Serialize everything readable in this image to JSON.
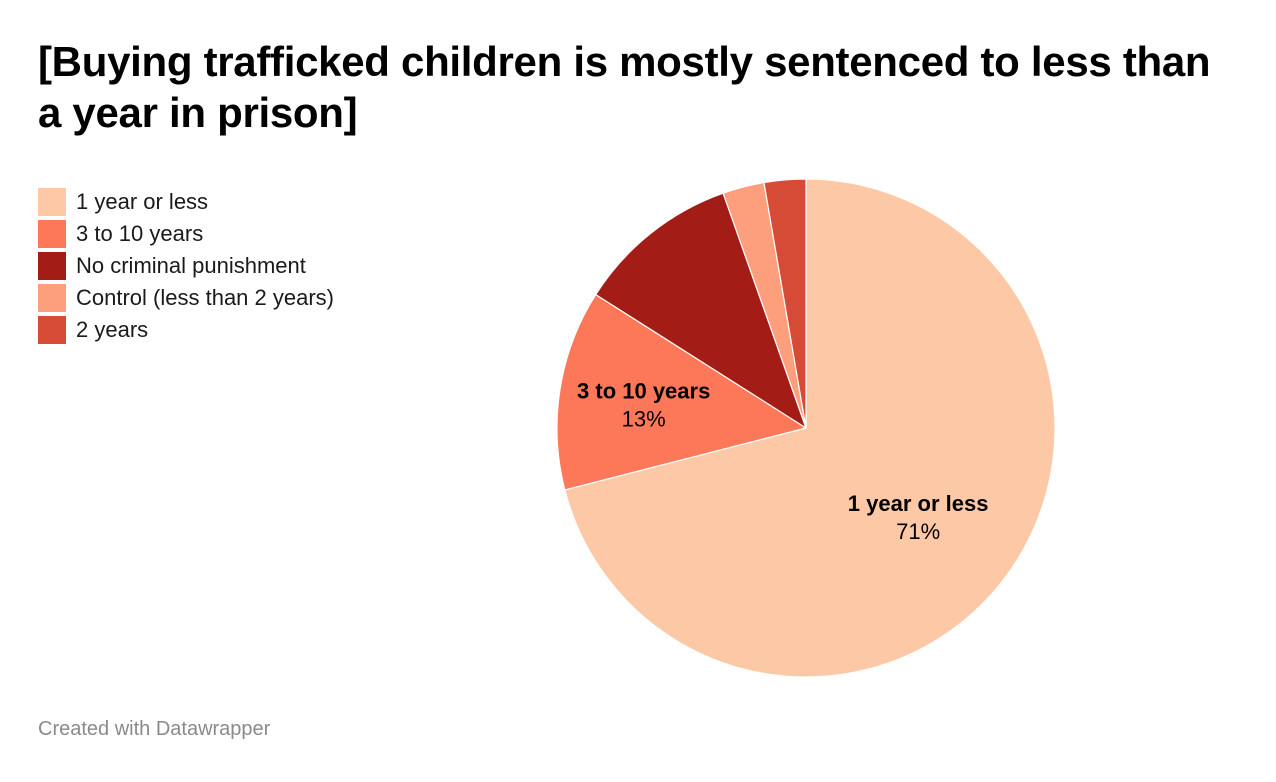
{
  "title": "[Buying trafficked children is mostly sentenced to less than a year in prison]",
  "footer": "Created with Datawrapper",
  "chart_data": {
    "type": "pie",
    "title": "[Buying trafficked children is mostly sentenced to less than a year in prison]",
    "legend_position": "left",
    "start": "12 o'clock",
    "direction": "clockwise",
    "slices": [
      {
        "name": "1 year or less",
        "value": 71,
        "label": "71%",
        "color": "#fdc8a5",
        "show_label": true
      },
      {
        "name": "3 to 10 years",
        "value": 13,
        "label": "13%",
        "color": "#fd7759",
        "show_label": true
      },
      {
        "name": "No criminal punishment",
        "value": 10.6,
        "color": "#a31c15",
        "show_label": false
      },
      {
        "name": "Control (less than 2 years)",
        "value": 2.7,
        "color": "#fd9e7d",
        "show_label": false
      },
      {
        "name": "2 years",
        "value": 2.7,
        "color": "#d64b36",
        "show_label": false
      }
    ],
    "display_order": [
      0,
      1,
      2,
      3,
      4
    ]
  }
}
